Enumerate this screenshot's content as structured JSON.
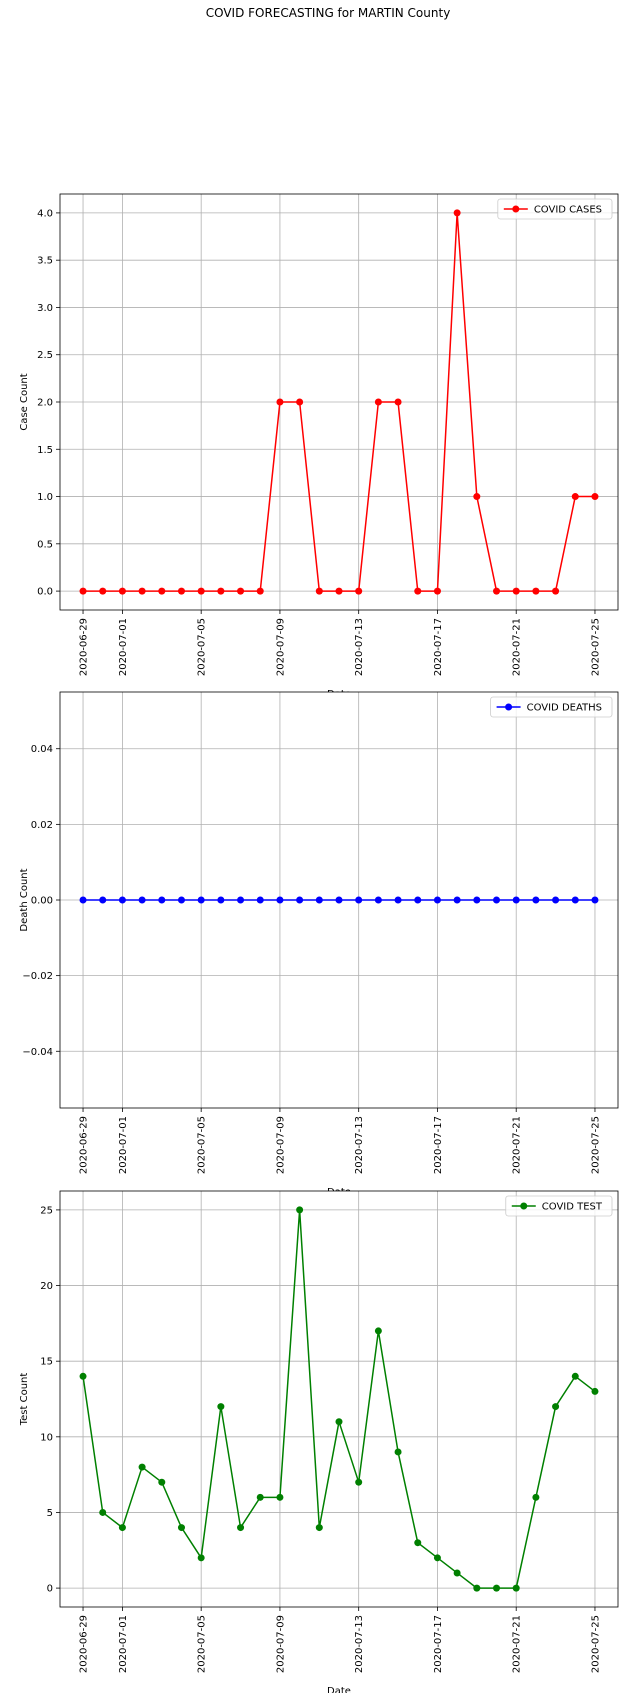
{
  "figure": {
    "title": "COVID FORECASTING for MARTIN County"
  },
  "chart_data": [
    {
      "type": "line",
      "title": "",
      "xlabel": "Date",
      "ylabel": "Case Count",
      "color": "#ff0000",
      "grid": true,
      "legend_position": "upper right",
      "x": [
        "2020-06-29",
        "2020-06-30",
        "2020-07-01",
        "2020-07-02",
        "2020-07-03",
        "2020-07-04",
        "2020-07-05",
        "2020-07-06",
        "2020-07-07",
        "2020-07-08",
        "2020-07-09",
        "2020-07-10",
        "2020-07-11",
        "2020-07-12",
        "2020-07-13",
        "2020-07-14",
        "2020-07-15",
        "2020-07-16",
        "2020-07-17",
        "2020-07-18",
        "2020-07-19",
        "2020-07-20",
        "2020-07-21",
        "2020-07-22",
        "2020-07-23",
        "2020-07-24",
        "2020-07-25"
      ],
      "xticks": [
        "2020-06-29",
        "2020-07-01",
        "2020-07-05",
        "2020-07-09",
        "2020-07-13",
        "2020-07-17",
        "2020-07-21",
        "2020-07-25"
      ],
      "series": [
        {
          "name": "COVID CASES",
          "values": [
            0,
            0,
            0,
            0,
            0,
            0,
            0,
            0,
            0,
            0,
            2,
            2,
            0,
            0,
            0,
            2,
            2,
            0,
            0,
            4,
            1,
            0,
            0,
            0,
            0,
            1,
            1
          ]
        }
      ],
      "ylim": [
        -0.2,
        4.2
      ],
      "yticks": [
        0.0,
        0.5,
        1.0,
        1.5,
        2.0,
        2.5,
        3.0,
        3.5,
        4.0
      ],
      "ytick_labels": [
        "0.0",
        "0.5",
        "1.0",
        "1.5",
        "2.0",
        "2.5",
        "3.0",
        "3.5",
        "4.0"
      ]
    },
    {
      "type": "line",
      "title": "",
      "xlabel": "Date",
      "ylabel": "Death Count",
      "color": "#0000ff",
      "grid": true,
      "legend_position": "upper right",
      "x": [
        "2020-06-29",
        "2020-06-30",
        "2020-07-01",
        "2020-07-02",
        "2020-07-03",
        "2020-07-04",
        "2020-07-05",
        "2020-07-06",
        "2020-07-07",
        "2020-07-08",
        "2020-07-09",
        "2020-07-10",
        "2020-07-11",
        "2020-07-12",
        "2020-07-13",
        "2020-07-14",
        "2020-07-15",
        "2020-07-16",
        "2020-07-17",
        "2020-07-18",
        "2020-07-19",
        "2020-07-20",
        "2020-07-21",
        "2020-07-22",
        "2020-07-23",
        "2020-07-24",
        "2020-07-25"
      ],
      "xticks": [
        "2020-06-29",
        "2020-07-01",
        "2020-07-05",
        "2020-07-09",
        "2020-07-13",
        "2020-07-17",
        "2020-07-21",
        "2020-07-25"
      ],
      "series": [
        {
          "name": "COVID DEATHS",
          "values": [
            0,
            0,
            0,
            0,
            0,
            0,
            0,
            0,
            0,
            0,
            0,
            0,
            0,
            0,
            0,
            0,
            0,
            0,
            0,
            0,
            0,
            0,
            0,
            0,
            0,
            0,
            0
          ]
        }
      ],
      "ylim": [
        -0.055,
        0.055
      ],
      "yticks": [
        -0.04,
        -0.02,
        0.0,
        0.02,
        0.04
      ],
      "ytick_labels": [
        "−0.04",
        "−0.02",
        "0.00",
        "0.02",
        "0.04"
      ]
    },
    {
      "type": "line",
      "title": "",
      "xlabel": "Date",
      "ylabel": "Test Count",
      "color": "#008000",
      "grid": true,
      "legend_position": "upper right",
      "x": [
        "2020-06-29",
        "2020-06-30",
        "2020-07-01",
        "2020-07-02",
        "2020-07-03",
        "2020-07-04",
        "2020-07-05",
        "2020-07-06",
        "2020-07-07",
        "2020-07-08",
        "2020-07-09",
        "2020-07-10",
        "2020-07-11",
        "2020-07-12",
        "2020-07-13",
        "2020-07-14",
        "2020-07-15",
        "2020-07-16",
        "2020-07-17",
        "2020-07-18",
        "2020-07-19",
        "2020-07-20",
        "2020-07-21",
        "2020-07-22",
        "2020-07-23",
        "2020-07-24",
        "2020-07-25"
      ],
      "xticks": [
        "2020-06-29",
        "2020-07-01",
        "2020-07-05",
        "2020-07-09",
        "2020-07-13",
        "2020-07-17",
        "2020-07-21",
        "2020-07-25"
      ],
      "series": [
        {
          "name": "COVID TEST",
          "values": [
            14,
            5,
            4,
            8,
            7,
            4,
            2,
            12,
            4,
            6,
            6,
            25,
            4,
            11,
            7,
            17,
            9,
            3,
            2,
            1,
            0,
            0,
            0,
            6,
            12,
            14,
            13
          ]
        }
      ],
      "ylim": [
        -1.25,
        26.25
      ],
      "yticks": [
        0,
        5,
        10,
        15,
        20,
        25
      ],
      "ytick_labels": [
        "0",
        "5",
        "10",
        "15",
        "20",
        "25"
      ]
    }
  ]
}
